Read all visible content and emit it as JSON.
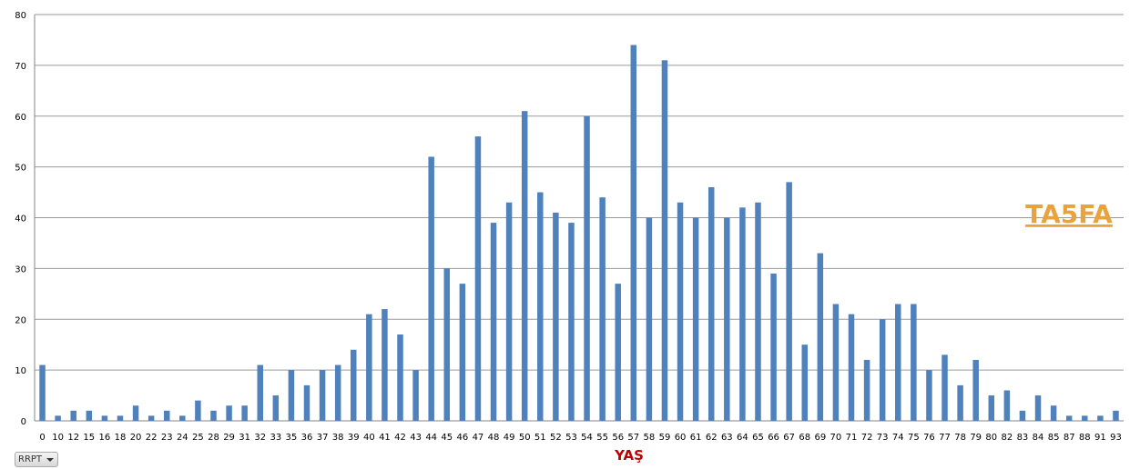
{
  "chart_data": {
    "type": "bar",
    "categories": [
      "0",
      "10",
      "12",
      "15",
      "16",
      "18",
      "20",
      "22",
      "23",
      "24",
      "25",
      "28",
      "29",
      "31",
      "32",
      "33",
      "35",
      "36",
      "37",
      "38",
      "39",
      "40",
      "41",
      "42",
      "43",
      "44",
      "45",
      "46",
      "47",
      "48",
      "49",
      "50",
      "51",
      "52",
      "53",
      "54",
      "55",
      "56",
      "57",
      "58",
      "59",
      "60",
      "61",
      "62",
      "63",
      "64",
      "65",
      "66",
      "67",
      "68",
      "69",
      "70",
      "71",
      "72",
      "73",
      "74",
      "75",
      "76",
      "77",
      "78",
      "79",
      "80",
      "82",
      "83",
      "84",
      "85",
      "87",
      "88",
      "91",
      "93"
    ],
    "values": [
      11,
      1,
      2,
      2,
      1,
      1,
      3,
      1,
      2,
      1,
      4,
      2,
      3,
      3,
      11,
      5,
      10,
      7,
      10,
      11,
      14,
      21,
      22,
      17,
      10,
      52,
      30,
      27,
      56,
      39,
      43,
      61,
      45,
      41,
      39,
      60,
      44,
      27,
      74,
      40,
      71,
      43,
      40,
      46,
      40,
      42,
      43,
      29,
      47,
      15,
      33,
      23,
      21,
      12,
      20,
      23,
      23,
      10,
      13,
      7,
      12,
      5,
      6,
      2,
      5,
      3,
      1,
      1,
      1,
      2
    ],
    "title": "",
    "xlabel": "YAŞ",
    "ylabel": "",
    "ylim": [
      0,
      80
    ],
    "yticks": [
      "0",
      "10",
      "20",
      "30",
      "40",
      "50",
      "60",
      "70",
      "80"
    ],
    "grid": true,
    "colors": {
      "bar": "#4f81bd",
      "xlabel": "#c00000",
      "watermark": "#e8a33c",
      "grid": "#9a9a9a"
    }
  },
  "watermark": "TA5FA",
  "filter_button": {
    "label": "RRPT"
  }
}
